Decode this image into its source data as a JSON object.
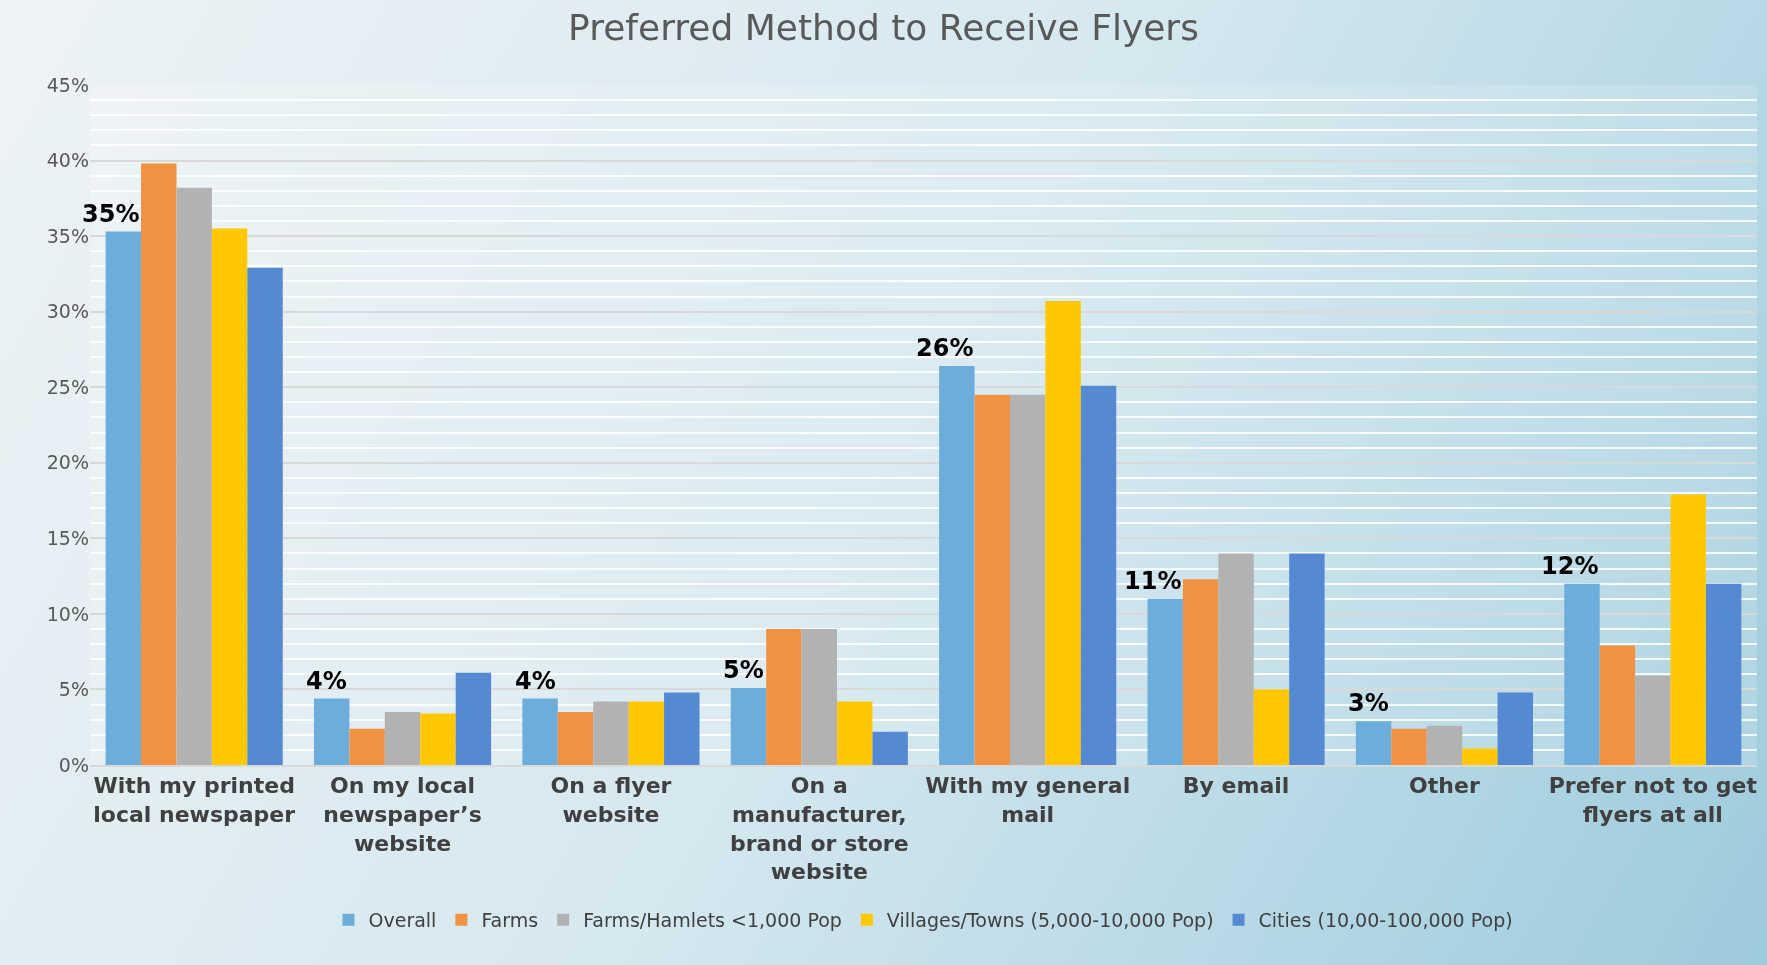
{
  "chart_data": {
    "type": "bar",
    "title": "Preferred Method to Receive Flyers",
    "categories": [
      "With my printed local newspaper",
      "On my local newspaper’s website",
      "On a flyer website",
      "On a manufacturer, brand or store website",
      "With my general mail",
      "By email",
      "Other",
      "Prefer not to get flyers at all"
    ],
    "series": [
      {
        "name": "Overall",
        "color": "#6daddc",
        "values": [
          35.3,
          4.4,
          4.4,
          5.1,
          26.4,
          11.0,
          2.9,
          12.0
        ],
        "value_labels": [
          "35%",
          "4%",
          "4%",
          "5%",
          "26%",
          "11%",
          "3%",
          "12%"
        ]
      },
      {
        "name": "Farms",
        "color": "#f19243",
        "values": [
          39.8,
          2.4,
          3.5,
          9.0,
          24.5,
          12.3,
          2.4,
          7.9
        ]
      },
      {
        "name": "Farms/Hamlets <1,000 Pop",
        "color": "#b2b2b2",
        "values": [
          38.2,
          3.5,
          4.2,
          9.0,
          24.5,
          14.0,
          2.6,
          5.9
        ]
      },
      {
        "name": "Villages/Towns (5,000-10,000 Pop)",
        "color": "#ffc800",
        "values": [
          35.5,
          3.4,
          4.2,
          4.2,
          30.7,
          5.0,
          1.1,
          17.9
        ]
      },
      {
        "name": "Cities (10,00-100,000 Pop)",
        "color": "#5589d1",
        "values": [
          32.9,
          6.1,
          4.8,
          2.2,
          25.1,
          14.0,
          4.8,
          12.0
        ]
      }
    ],
    "ylim": [
      0,
      45
    ],
    "yticks": [
      {
        "value": 0,
        "label": "0%"
      },
      {
        "value": 5,
        "label": "5%"
      },
      {
        "value": 10,
        "label": "10%"
      },
      {
        "value": 15,
        "label": "15%"
      },
      {
        "value": 20,
        "label": "20%"
      },
      {
        "value": 25,
        "label": "25%"
      },
      {
        "value": 30,
        "label": "30%"
      },
      {
        "value": 35,
        "label": "35%"
      },
      {
        "value": 40,
        "label": "40%"
      },
      {
        "value": 45,
        "label": "45%"
      }
    ],
    "grid": "y",
    "legend": "bottom"
  }
}
